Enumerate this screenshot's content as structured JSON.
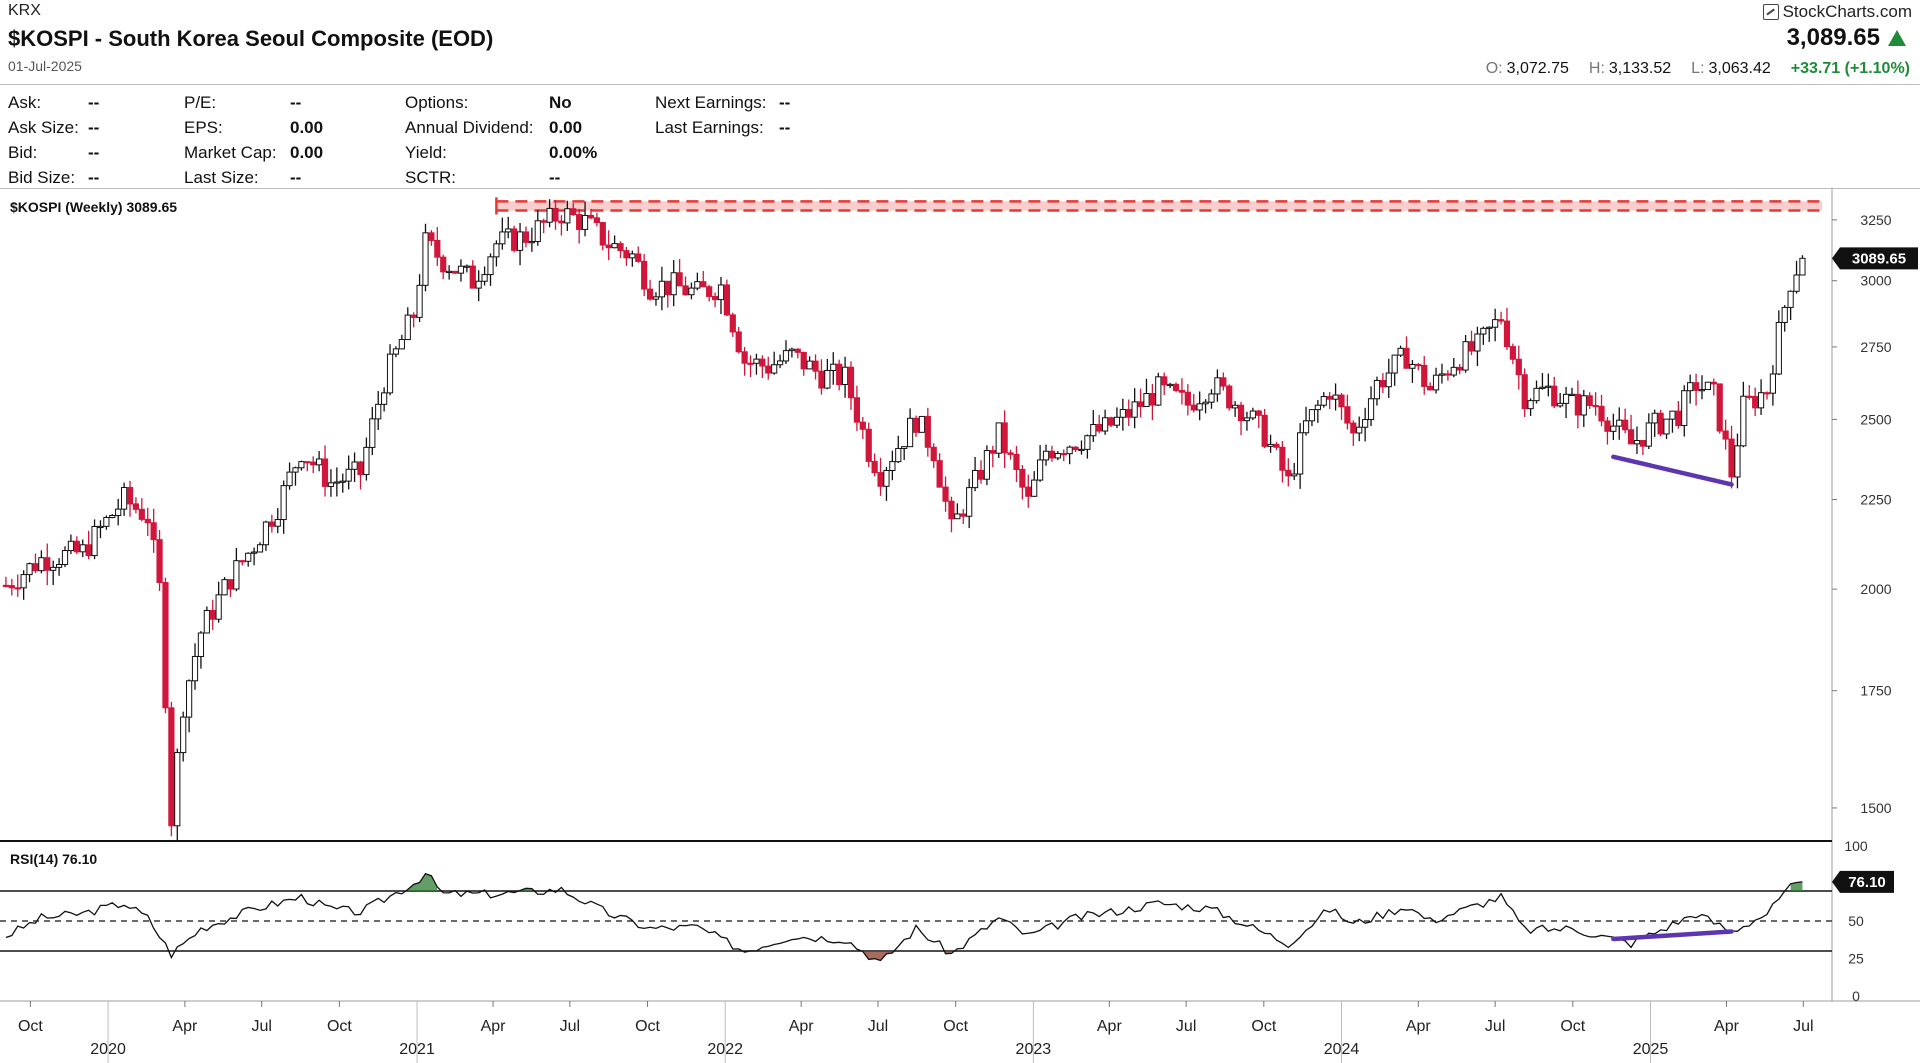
{
  "header": {
    "exchange": "KRX",
    "title": "$KOSPI - South Korea Seoul Composite (EOD)",
    "date": "01-Jul-2025",
    "brand": "StockCharts.com",
    "last_price": "3,089.65",
    "open_label": "O:",
    "open": "3,072.75",
    "high_label": "H:",
    "high": "3,133.52",
    "low_label": "L:",
    "low": "3,063.42",
    "change": "+33.71 (+1.10%)"
  },
  "quote": {
    "col1": [
      {
        "label": "Ask:",
        "value": "--"
      },
      {
        "label": "Ask Size:",
        "value": "--"
      },
      {
        "label": "Bid:",
        "value": "--"
      },
      {
        "label": "Bid Size:",
        "value": "--"
      }
    ],
    "col2": [
      {
        "label": "P/E:",
        "value": "--"
      },
      {
        "label": "EPS:",
        "value": "0.00"
      },
      {
        "label": "Market Cap:",
        "value": "0.00"
      },
      {
        "label": "Last Size:",
        "value": "--"
      }
    ],
    "col3": [
      {
        "label": "Options:",
        "value": "No"
      },
      {
        "label": "Annual Dividend:",
        "value": "0.00"
      },
      {
        "label": "Yield:",
        "value": "0.00%"
      },
      {
        "label": "SCTR:",
        "value": "--"
      }
    ],
    "col4": [
      {
        "label": "Next Earnings:",
        "value": "--"
      },
      {
        "label": "Last Earnings:",
        "value": "--"
      }
    ]
  },
  "colors": {
    "up": "#111111",
    "down": "#d0163b",
    "resistance": "#e53935",
    "trendline": "#5e35b1",
    "rsi_over": "#2e7d32",
    "rsi_under": "#8d3a2a"
  },
  "chart_data": [
    {
      "type": "candlestick",
      "label": "$KOSPI (Weekly) 3089.65",
      "last_value_tag": "3089.65",
      "y_scale": "log",
      "ylim": [
        1440,
        3380
      ],
      "y_ticks": [
        1500,
        1750,
        2000,
        2250,
        2500,
        2750,
        3000,
        3250
      ],
      "grid": false,
      "resistance_zone": {
        "from": 3290,
        "to": 3330,
        "start": "2021-04-05",
        "end": "2025-07-01"
      },
      "trendline": {
        "from_date": "2024-11-18",
        "from_value": 2380,
        "to_date": "2025-04-07",
        "to_value": 2295
      },
      "x_labels": [
        {
          "date": "2019-10-01",
          "label": "Oct"
        },
        {
          "date": "2020-04-01",
          "label": "Apr"
        },
        {
          "date": "2020-07-01",
          "label": "Jul"
        },
        {
          "date": "2020-10-01",
          "label": "Oct"
        },
        {
          "date": "2021-04-01",
          "label": "Apr"
        },
        {
          "date": "2021-07-01",
          "label": "Jul"
        },
        {
          "date": "2021-10-01",
          "label": "Oct"
        },
        {
          "date": "2022-04-01",
          "label": "Apr"
        },
        {
          "date": "2022-07-01",
          "label": "Jul"
        },
        {
          "date": "2022-10-01",
          "label": "Oct"
        },
        {
          "date": "2023-04-01",
          "label": "Apr"
        },
        {
          "date": "2023-07-01",
          "label": "Jul"
        },
        {
          "date": "2023-10-01",
          "label": "Oct"
        },
        {
          "date": "2024-04-01",
          "label": "Apr"
        },
        {
          "date": "2024-07-01",
          "label": "Jul"
        },
        {
          "date": "2024-10-01",
          "label": "Oct"
        },
        {
          "date": "2025-04-01",
          "label": "Apr"
        },
        {
          "date": "2025-07-01",
          "label": "Jul"
        }
      ],
      "year_labels": [
        {
          "date": "2020-01-01",
          "label": "2020"
        },
        {
          "date": "2021-01-01",
          "label": "2021"
        },
        {
          "date": "2022-01-01",
          "label": "2022"
        },
        {
          "date": "2023-01-01",
          "label": "2023"
        },
        {
          "date": "2024-01-01",
          "label": "2024"
        },
        {
          "date": "2025-01-01",
          "label": "2025"
        }
      ],
      "x_range": [
        "2019-08-26",
        "2025-08-04"
      ],
      "closes": [
        {
          "date": "2019-09-02",
          "close": 2010
        },
        {
          "date": "2019-10-14",
          "close": 2080
        },
        {
          "date": "2019-12-02",
          "close": 2100
        },
        {
          "date": "2020-01-20",
          "close": 2250
        },
        {
          "date": "2020-02-17",
          "close": 2200
        },
        {
          "date": "2020-03-02",
          "close": 2000
        },
        {
          "date": "2020-03-16",
          "close": 1480
        },
        {
          "date": "2020-03-30",
          "close": 1720
        },
        {
          "date": "2020-04-20",
          "close": 1890
        },
        {
          "date": "2020-05-25",
          "close": 2030
        },
        {
          "date": "2020-06-22",
          "close": 2120
        },
        {
          "date": "2020-07-20",
          "close": 2230
        },
        {
          "date": "2020-08-17",
          "close": 2400
        },
        {
          "date": "2020-09-21",
          "close": 2300
        },
        {
          "date": "2020-10-26",
          "close": 2330
        },
        {
          "date": "2020-11-23",
          "close": 2630
        },
        {
          "date": "2020-12-28",
          "close": 2870
        },
        {
          "date": "2021-01-11",
          "close": 3150
        },
        {
          "date": "2021-02-01",
          "close": 3080
        },
        {
          "date": "2021-03-08",
          "close": 3000
        },
        {
          "date": "2021-04-05",
          "close": 3150
        },
        {
          "date": "2021-05-10",
          "close": 3180
        },
        {
          "date": "2021-06-21",
          "close": 3280
        },
        {
          "date": "2021-07-19",
          "close": 3240
        },
        {
          "date": "2021-08-16",
          "close": 3150
        },
        {
          "date": "2021-09-13",
          "close": 3100
        },
        {
          "date": "2021-10-04",
          "close": 2980
        },
        {
          "date": "2021-11-01",
          "close": 2980
        },
        {
          "date": "2021-11-29",
          "close": 2950
        },
        {
          "date": "2021-12-27",
          "close": 2980
        },
        {
          "date": "2022-01-24",
          "close": 2700
        },
        {
          "date": "2022-02-21",
          "close": 2680
        },
        {
          "date": "2022-03-21",
          "close": 2720
        },
        {
          "date": "2022-04-25",
          "close": 2650
        },
        {
          "date": "2022-05-23",
          "close": 2640
        },
        {
          "date": "2022-06-20",
          "close": 2400
        },
        {
          "date": "2022-07-04",
          "close": 2330
        },
        {
          "date": "2022-08-15",
          "close": 2500
        },
        {
          "date": "2022-09-05",
          "close": 2400
        },
        {
          "date": "2022-09-26",
          "close": 2160
        },
        {
          "date": "2022-10-24",
          "close": 2300
        },
        {
          "date": "2022-11-21",
          "close": 2450
        },
        {
          "date": "2022-12-26",
          "close": 2240
        },
        {
          "date": "2023-01-16",
          "close": 2400
        },
        {
          "date": "2023-02-20",
          "close": 2430
        },
        {
          "date": "2023-03-27",
          "close": 2470
        },
        {
          "date": "2023-04-24",
          "close": 2520
        },
        {
          "date": "2023-05-29",
          "close": 2600
        },
        {
          "date": "2023-07-03",
          "close": 2550
        },
        {
          "date": "2023-07-31",
          "close": 2620
        },
        {
          "date": "2023-09-04",
          "close": 2540
        },
        {
          "date": "2023-10-02",
          "close": 2450
        },
        {
          "date": "2023-10-30",
          "close": 2300
        },
        {
          "date": "2023-11-20",
          "close": 2480
        },
        {
          "date": "2023-12-18",
          "close": 2600
        },
        {
          "date": "2024-01-15",
          "close": 2450
        },
        {
          "date": "2024-02-12",
          "close": 2620
        },
        {
          "date": "2024-03-18",
          "close": 2720
        },
        {
          "date": "2024-04-15",
          "close": 2600
        },
        {
          "date": "2024-05-13",
          "close": 2700
        },
        {
          "date": "2024-06-10",
          "close": 2750
        },
        {
          "date": "2024-07-08",
          "close": 2860
        },
        {
          "date": "2024-08-05",
          "close": 2580
        },
        {
          "date": "2024-09-02",
          "close": 2600
        },
        {
          "date": "2024-09-30",
          "close": 2550
        },
        {
          "date": "2024-10-28",
          "close": 2550
        },
        {
          "date": "2024-11-18",
          "close": 2480
        },
        {
          "date": "2024-12-09",
          "close": 2420
        },
        {
          "date": "2025-01-06",
          "close": 2480
        },
        {
          "date": "2025-02-03",
          "close": 2520
        },
        {
          "date": "2025-02-24",
          "close": 2620
        },
        {
          "date": "2025-03-17",
          "close": 2580
        },
        {
          "date": "2025-04-07",
          "close": 2330
        },
        {
          "date": "2025-04-21",
          "close": 2540
        },
        {
          "date": "2025-05-19",
          "close": 2600
        },
        {
          "date": "2025-06-02",
          "close": 2800
        },
        {
          "date": "2025-06-16",
          "close": 3000
        },
        {
          "date": "2025-06-23",
          "close": 3050
        },
        {
          "date": "2025-06-30",
          "close": 3089.65
        }
      ]
    },
    {
      "type": "line",
      "label": "RSI(14) 76.10",
      "last_value_tag": "76.10",
      "ylim": [
        0,
        100
      ],
      "y_ticks": [
        0,
        25,
        50,
        100
      ],
      "reference_lines": [
        30,
        50,
        70
      ],
      "trendline": {
        "from_date": "2024-11-18",
        "from_value": 38,
        "to_date": "2025-04-07",
        "to_value": 43
      },
      "points": [
        {
          "date": "2019-09-02",
          "value": 40
        },
        {
          "date": "2019-10-14",
          "value": 52
        },
        {
          "date": "2019-12-02",
          "value": 55
        },
        {
          "date": "2020-01-20",
          "value": 62
        },
        {
          "date": "2020-02-17",
          "value": 52
        },
        {
          "date": "2020-03-16",
          "value": 28
        },
        {
          "date": "2020-04-20",
          "value": 45
        },
        {
          "date": "2020-06-22",
          "value": 58
        },
        {
          "date": "2020-08-17",
          "value": 66
        },
        {
          "date": "2020-09-21",
          "value": 58
        },
        {
          "date": "2020-10-26",
          "value": 56
        },
        {
          "date": "2020-12-28",
          "value": 75
        },
        {
          "date": "2021-01-11",
          "value": 82
        },
        {
          "date": "2021-02-01",
          "value": 68
        },
        {
          "date": "2021-04-05",
          "value": 68
        },
        {
          "date": "2021-06-21",
          "value": 71
        },
        {
          "date": "2021-08-16",
          "value": 55
        },
        {
          "date": "2021-10-04",
          "value": 45
        },
        {
          "date": "2021-11-29",
          "value": 46
        },
        {
          "date": "2022-01-24",
          "value": 30
        },
        {
          "date": "2022-03-21",
          "value": 40
        },
        {
          "date": "2022-05-23",
          "value": 38
        },
        {
          "date": "2022-07-04",
          "value": 22
        },
        {
          "date": "2022-08-15",
          "value": 45
        },
        {
          "date": "2022-09-26",
          "value": 28
        },
        {
          "date": "2022-11-21",
          "value": 52
        },
        {
          "date": "2022-12-26",
          "value": 40
        },
        {
          "date": "2023-02-20",
          "value": 52
        },
        {
          "date": "2023-04-24",
          "value": 58
        },
        {
          "date": "2023-05-29",
          "value": 62
        },
        {
          "date": "2023-07-31",
          "value": 58
        },
        {
          "date": "2023-10-30",
          "value": 35
        },
        {
          "date": "2023-12-18",
          "value": 58
        },
        {
          "date": "2024-01-15",
          "value": 48
        },
        {
          "date": "2024-03-18",
          "value": 60
        },
        {
          "date": "2024-04-15",
          "value": 50
        },
        {
          "date": "2024-07-08",
          "value": 66
        },
        {
          "date": "2024-08-05",
          "value": 44
        },
        {
          "date": "2024-09-30",
          "value": 45
        },
        {
          "date": "2024-11-18",
          "value": 38
        },
        {
          "date": "2024-12-09",
          "value": 35
        },
        {
          "date": "2025-02-24",
          "value": 55
        },
        {
          "date": "2025-04-07",
          "value": 43
        },
        {
          "date": "2025-05-19",
          "value": 55
        },
        {
          "date": "2025-06-16",
          "value": 72
        },
        {
          "date": "2025-06-30",
          "value": 76.1
        }
      ]
    }
  ]
}
